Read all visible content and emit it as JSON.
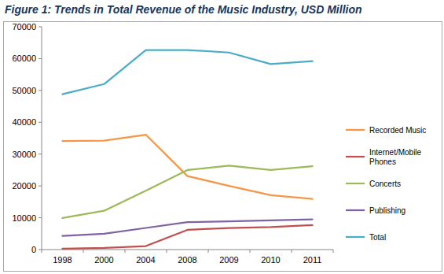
{
  "chart_data": {
    "type": "line",
    "title": "Figure 1: Trends in Total Revenue of the Music Industry, USD Million",
    "categories": [
      "1998",
      "2000",
      "2004",
      "2008",
      "2009",
      "2010",
      "2011"
    ],
    "series": [
      {
        "name": "Recorded Music",
        "color": "#f79646",
        "values": [
          34100,
          34200,
          36100,
          23100,
          20000,
          17100,
          15900
        ]
      },
      {
        "name": "Internet/Mobile Phones",
        "color": "#c0504d",
        "values": [
          300,
          500,
          1100,
          6200,
          6800,
          7100,
          7700
        ]
      },
      {
        "name": "Concerts",
        "color": "#9bbb59",
        "values": [
          9900,
          12200,
          18500,
          25000,
          26400,
          25000,
          26200
        ]
      },
      {
        "name": "Publishing",
        "color": "#8064a2",
        "values": [
          4300,
          5000,
          6800,
          8600,
          8900,
          9200,
          9500
        ]
      },
      {
        "name": "Total",
        "color": "#4bacc6",
        "values": [
          48800,
          52000,
          62700,
          62700,
          61900,
          58300,
          59200
        ]
      }
    ],
    "ylim": [
      0,
      70000
    ],
    "yticks": [
      0,
      10000,
      20000,
      30000,
      40000,
      50000,
      60000,
      70000
    ],
    "grid": false,
    "legend": "right"
  }
}
